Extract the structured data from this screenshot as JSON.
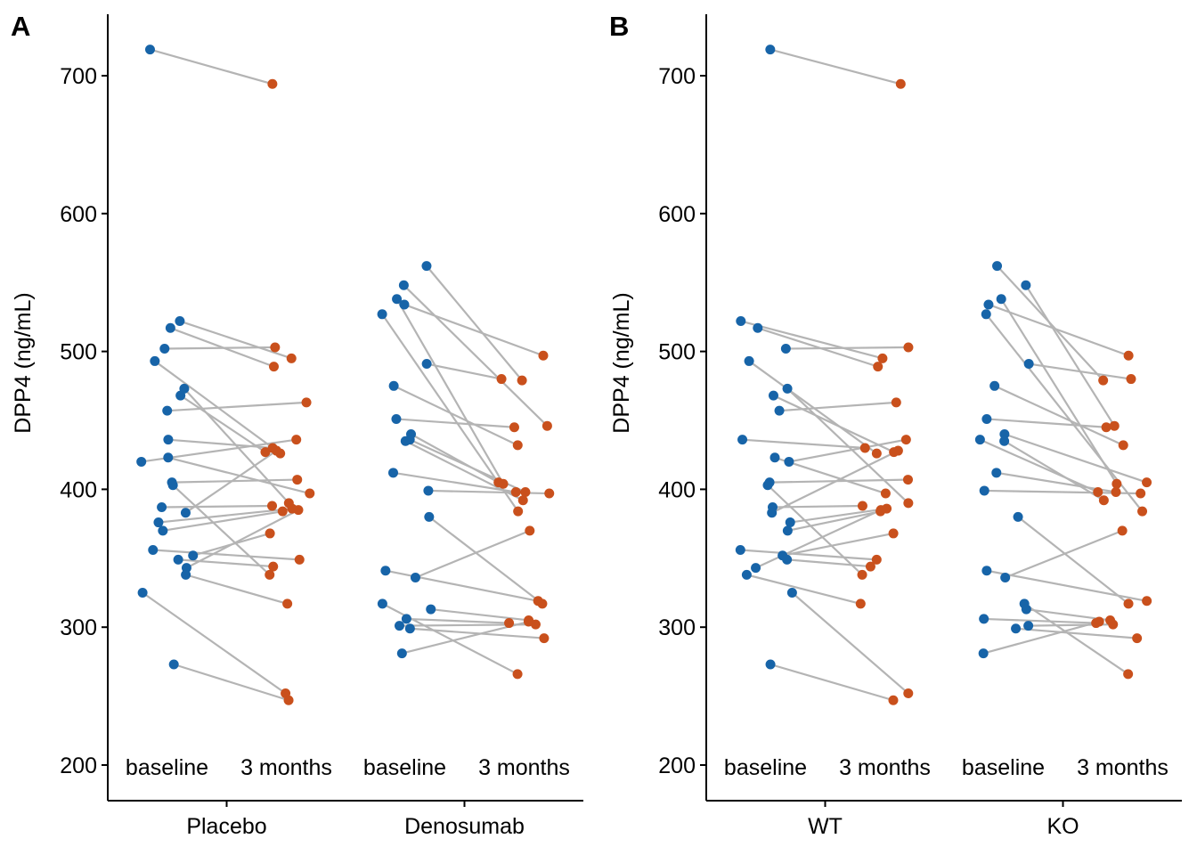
{
  "colors": {
    "baseline": "#1764a8",
    "followup": "#c9501c",
    "line": "#b4b4b4",
    "axis": "#000000"
  },
  "chart_data": [
    {
      "type": "scatter",
      "panel_label": "A",
      "ylabel": "DPP4 (ng/mL)",
      "xlabel": "",
      "ylim": [
        200,
        735
      ],
      "yticks": [
        200,
        300,
        400,
        500,
        600,
        700
      ],
      "grid": false,
      "groups": [
        {
          "name": "Placebo",
          "timepoints": [
            "baseline",
            "3 months"
          ],
          "pairs": [
            {
              "baseline": 719,
              "month3": 694
            },
            {
              "baseline": 522,
              "month3": 495
            },
            {
              "baseline": 517,
              "month3": 489
            },
            {
              "baseline": 502,
              "month3": 503
            },
            {
              "baseline": 493,
              "month3": 426
            },
            {
              "baseline": 473,
              "month3": 390
            },
            {
              "baseline": 468,
              "month3": 427
            },
            {
              "baseline": 457,
              "month3": 463
            },
            {
              "baseline": 436,
              "month3": 430
            },
            {
              "baseline": 423,
              "month3": 397
            },
            {
              "baseline": 420,
              "month3": 436
            },
            {
              "baseline": 405,
              "month3": 407
            },
            {
              "baseline": 403,
              "month3": 338
            },
            {
              "baseline": 387,
              "month3": 388
            },
            {
              "baseline": 383,
              "month3": 428
            },
            {
              "baseline": 376,
              "month3": 386
            },
            {
              "baseline": 370,
              "month3": 384
            },
            {
              "baseline": 356,
              "month3": 349
            },
            {
              "baseline": 352,
              "month3": 368
            },
            {
              "baseline": 349,
              "month3": 344
            },
            {
              "baseline": 343,
              "month3": 385
            },
            {
              "baseline": 338,
              "month3": 317
            },
            {
              "baseline": 325,
              "month3": 252
            },
            {
              "baseline": 273,
              "month3": 247
            }
          ]
        },
        {
          "name": "Denosumab",
          "timepoints": [
            "baseline",
            "3 months"
          ],
          "pairs": [
            {
              "baseline": 562,
              "month3": 479
            },
            {
              "baseline": 548,
              "month3": 446
            },
            {
              "baseline": 538,
              "month3": 404
            },
            {
              "baseline": 534,
              "month3": 497
            },
            {
              "baseline": 527,
              "month3": 384
            },
            {
              "baseline": 491,
              "month3": 480
            },
            {
              "baseline": 475,
              "month3": 432
            },
            {
              "baseline": 451,
              "month3": 445
            },
            {
              "baseline": 440,
              "month3": 405
            },
            {
              "baseline": 436,
              "month3": 398
            },
            {
              "baseline": 435,
              "month3": 392
            },
            {
              "baseline": 412,
              "month3": 398
            },
            {
              "baseline": 399,
              "month3": 397
            },
            {
              "baseline": 380,
              "month3": 317
            },
            {
              "baseline": 341,
              "month3": 319
            },
            {
              "baseline": 336,
              "month3": 370
            },
            {
              "baseline": 317,
              "month3": 266
            },
            {
              "baseline": 313,
              "month3": 305
            },
            {
              "baseline": 306,
              "month3": 303
            },
            {
              "baseline": 301,
              "month3": 302
            },
            {
              "baseline": 299,
              "month3": 292
            },
            {
              "baseline": 281,
              "month3": 304
            }
          ]
        }
      ]
    },
    {
      "type": "scatter",
      "panel_label": "B",
      "ylabel": "DPP4 (ng/mL)",
      "xlabel": "",
      "ylim": [
        200,
        735
      ],
      "yticks": [
        200,
        300,
        400,
        500,
        600,
        700
      ],
      "grid": false,
      "groups": [
        {
          "name": "WT",
          "timepoints": [
            "baseline",
            "3 months"
          ],
          "pairs": [
            {
              "baseline": 719,
              "month3": 694
            },
            {
              "baseline": 522,
              "month3": 495
            },
            {
              "baseline": 517,
              "month3": 489
            },
            {
              "baseline": 502,
              "month3": 503
            },
            {
              "baseline": 493,
              "month3": 426
            },
            {
              "baseline": 473,
              "month3": 390
            },
            {
              "baseline": 468,
              "month3": 427
            },
            {
              "baseline": 457,
              "month3": 463
            },
            {
              "baseline": 436,
              "month3": 430
            },
            {
              "baseline": 423,
              "month3": 397
            },
            {
              "baseline": 420,
              "month3": 436
            },
            {
              "baseline": 405,
              "month3": 407
            },
            {
              "baseline": 403,
              "month3": 338
            },
            {
              "baseline": 387,
              "month3": 388
            },
            {
              "baseline": 383,
              "month3": 428
            },
            {
              "baseline": 376,
              "month3": 386
            },
            {
              "baseline": 370,
              "month3": 384
            },
            {
              "baseline": 356,
              "month3": 349
            },
            {
              "baseline": 352,
              "month3": 368
            },
            {
              "baseline": 349,
              "month3": 344
            },
            {
              "baseline": 343,
              "month3": 385
            },
            {
              "baseline": 338,
              "month3": 317
            },
            {
              "baseline": 325,
              "month3": 252
            },
            {
              "baseline": 273,
              "month3": 247
            }
          ]
        },
        {
          "name": "KO",
          "timepoints": [
            "baseline",
            "3 months"
          ],
          "pairs": [
            {
              "baseline": 562,
              "month3": 479
            },
            {
              "baseline": 548,
              "month3": 446
            },
            {
              "baseline": 538,
              "month3": 404
            },
            {
              "baseline": 534,
              "month3": 497
            },
            {
              "baseline": 527,
              "month3": 384
            },
            {
              "baseline": 491,
              "month3": 480
            },
            {
              "baseline": 475,
              "month3": 432
            },
            {
              "baseline": 451,
              "month3": 445
            },
            {
              "baseline": 440,
              "month3": 405
            },
            {
              "baseline": 436,
              "month3": 398
            },
            {
              "baseline": 435,
              "month3": 392
            },
            {
              "baseline": 412,
              "month3": 398
            },
            {
              "baseline": 399,
              "month3": 397
            },
            {
              "baseline": 380,
              "month3": 317
            },
            {
              "baseline": 341,
              "month3": 319
            },
            {
              "baseline": 336,
              "month3": 370
            },
            {
              "baseline": 317,
              "month3": 266
            },
            {
              "baseline": 313,
              "month3": 305
            },
            {
              "baseline": 306,
              "month3": 303
            },
            {
              "baseline": 301,
              "month3": 302
            },
            {
              "baseline": 299,
              "month3": 292
            },
            {
              "baseline": 281,
              "month3": 304
            }
          ]
        }
      ]
    }
  ]
}
